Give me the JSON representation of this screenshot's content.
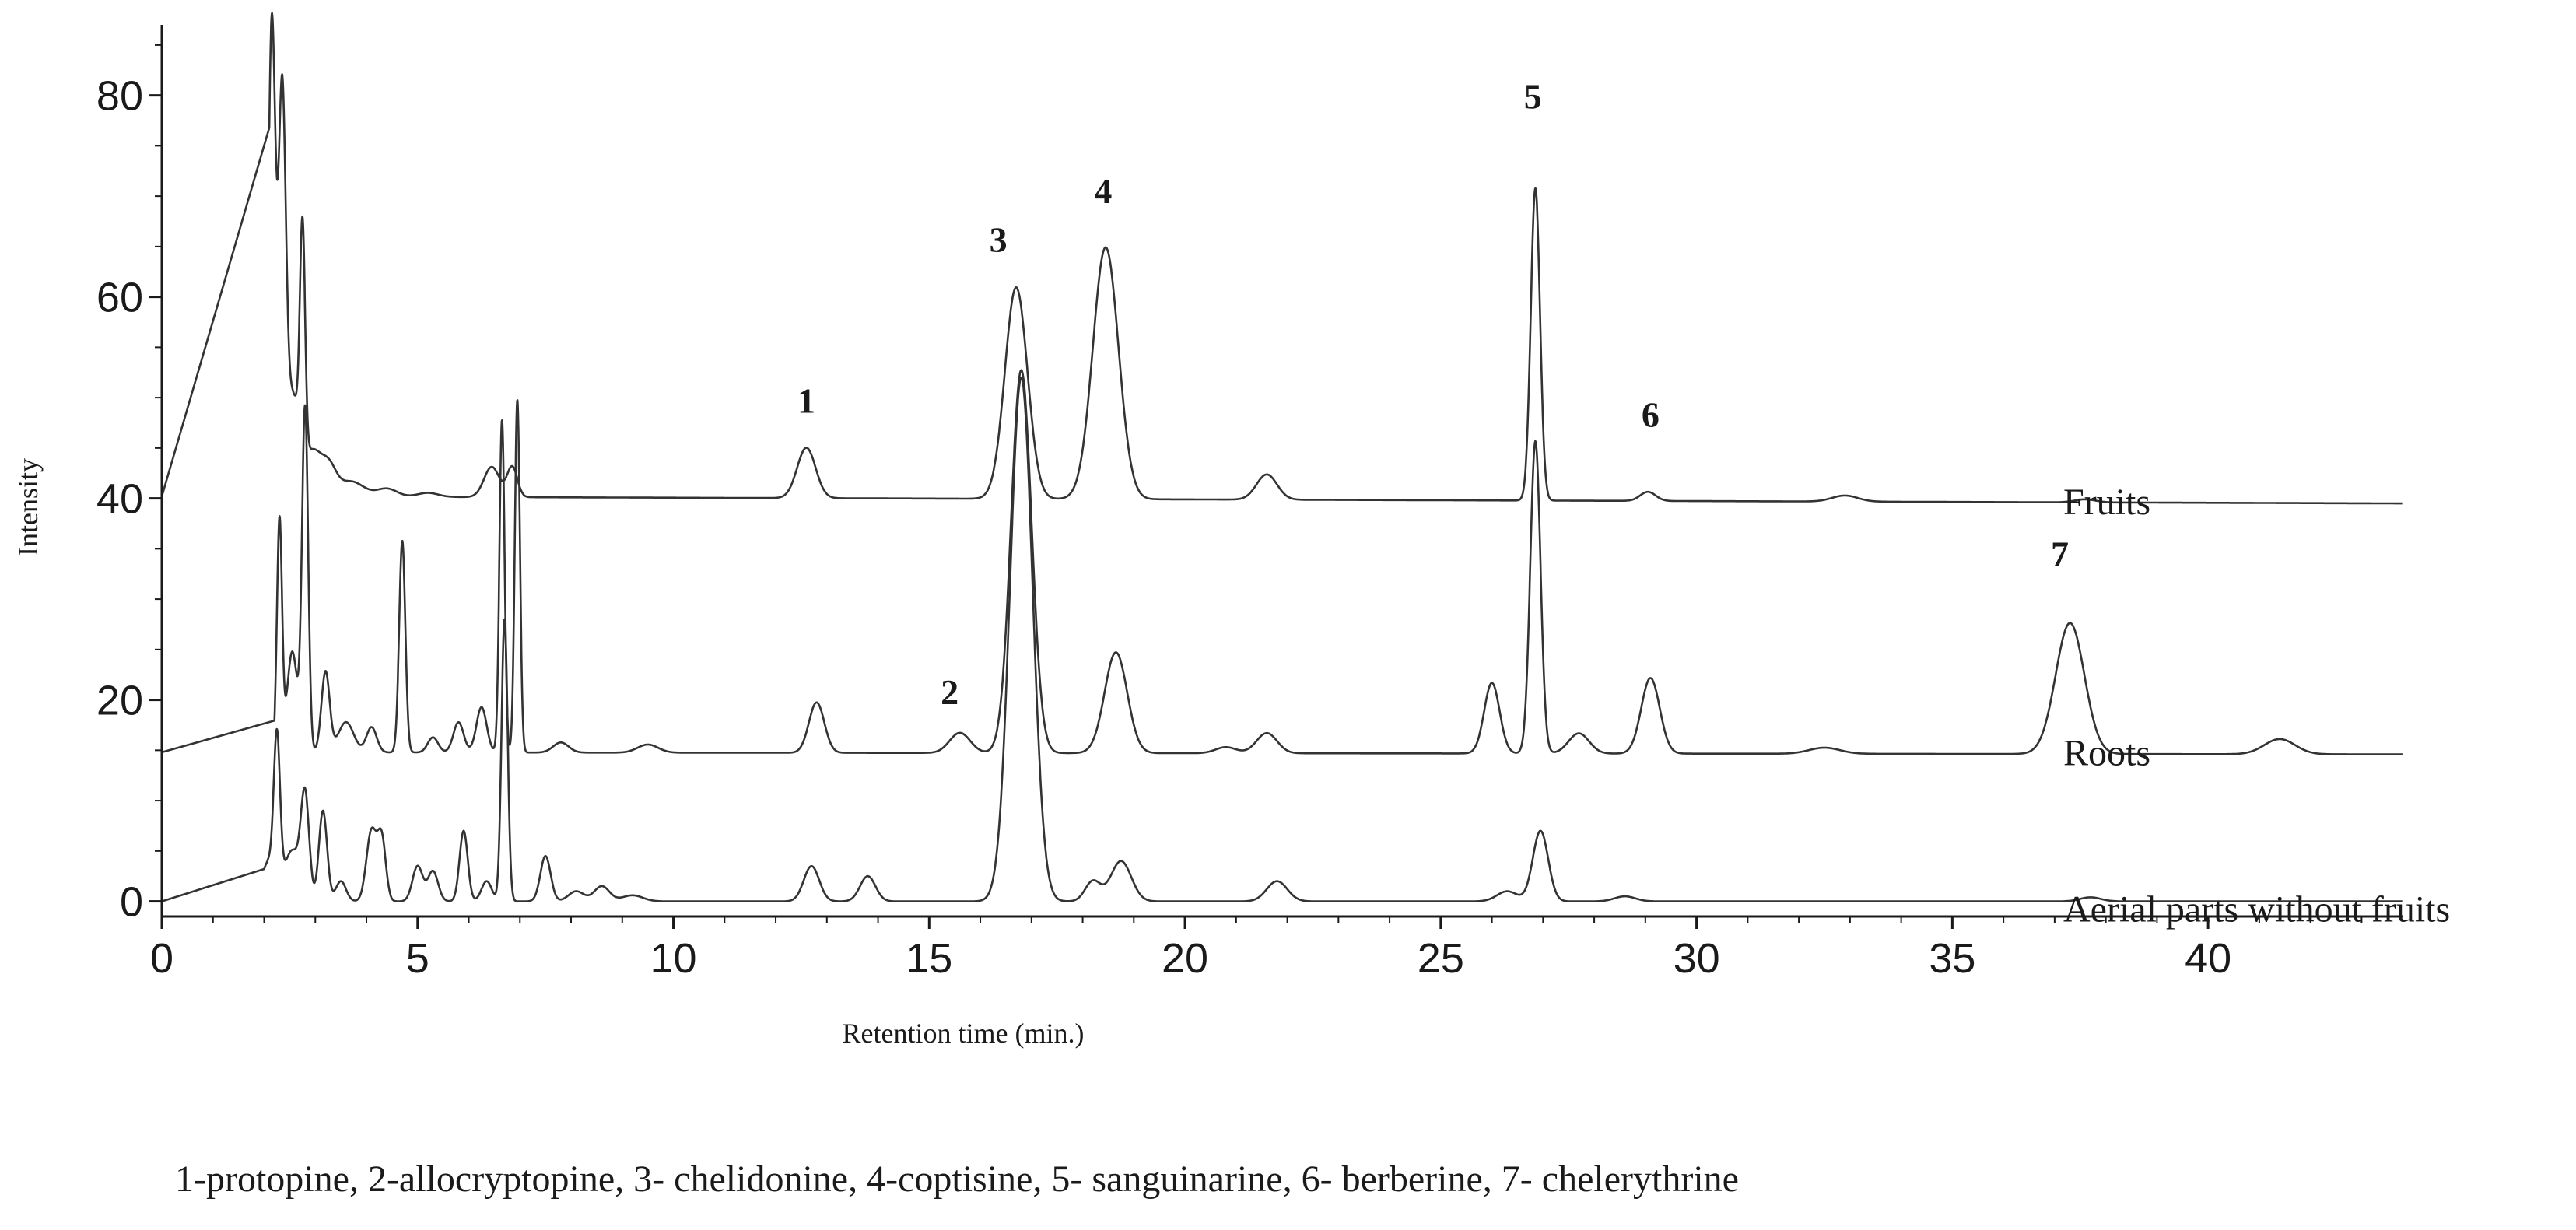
{
  "chart_data": {
    "type": "line",
    "xlabel": "Retention time (min.)",
    "ylabel": "Intensity",
    "xlim": [
      0,
      43.8
    ],
    "ylim": [
      -1.5,
      87
    ],
    "x_ticks": [
      0,
      5,
      10,
      15,
      20,
      25,
      30,
      35,
      40
    ],
    "y_ticks": [
      0,
      20,
      40,
      60,
      80
    ],
    "series": [
      {
        "name": "Fruits",
        "color": "#333333",
        "baseline": 40.2,
        "baseline_end": 39.5,
        "start_time": 2.1,
        "peaks": [
          [
            2.15,
            47,
            0.07
          ],
          [
            2.35,
            37,
            0.07
          ],
          [
            2.55,
            10,
            0.15
          ],
          [
            2.75,
            22,
            0.05
          ],
          [
            2.95,
            4,
            0.15
          ],
          [
            3.25,
            3,
            0.15
          ],
          [
            3.7,
            1.5,
            0.25
          ],
          [
            4.4,
            0.8,
            0.2
          ],
          [
            5.2,
            0.4,
            0.2
          ],
          [
            6.45,
            3,
            0.15
          ],
          [
            6.85,
            3,
            0.1
          ],
          [
            12.6,
            5,
            0.18
          ],
          [
            16.7,
            21,
            0.22
          ],
          [
            18.45,
            25,
            0.25
          ],
          [
            21.6,
            2.5,
            0.2
          ],
          [
            26.85,
            31,
            0.09
          ],
          [
            29.05,
            0.9,
            0.15
          ],
          [
            32.9,
            0.6,
            0.25
          ],
          [
            37.6,
            0.3,
            0.2
          ]
        ]
      },
      {
        "name": "Roots",
        "color": "#333333",
        "baseline": 14.8,
        "baseline_end": 14.6,
        "start_time": 2.2,
        "peaks": [
          [
            2.3,
            23,
            0.05
          ],
          [
            2.55,
            10,
            0.1
          ],
          [
            2.8,
            34,
            0.06
          ],
          [
            3.2,
            8,
            0.08
          ],
          [
            3.6,
            3,
            0.15
          ],
          [
            4.1,
            2.5,
            0.1
          ],
          [
            4.7,
            21,
            0.06
          ],
          [
            5.3,
            1.5,
            0.1
          ],
          [
            5.8,
            3,
            0.1
          ],
          [
            6.25,
            4.5,
            0.1
          ],
          [
            6.65,
            33,
            0.05
          ],
          [
            6.95,
            35,
            0.05
          ],
          [
            7.8,
            1,
            0.15
          ],
          [
            9.5,
            0.8,
            0.2
          ],
          [
            12.8,
            5,
            0.15
          ],
          [
            15.6,
            2,
            0.2
          ],
          [
            16.8,
            38,
            0.2
          ],
          [
            18.65,
            10,
            0.22
          ],
          [
            20.8,
            0.6,
            0.2
          ],
          [
            21.6,
            2,
            0.2
          ],
          [
            26.0,
            7,
            0.15
          ],
          [
            26.85,
            31,
            0.1
          ],
          [
            27.7,
            2,
            0.2
          ],
          [
            29.1,
            7.5,
            0.18
          ],
          [
            32.5,
            0.6,
            0.3
          ],
          [
            37.3,
            13,
            0.28
          ],
          [
            41.4,
            1.5,
            0.3
          ]
        ]
      },
      {
        "name": "Aerial parts without fruits",
        "color": "#333333",
        "baseline": 0,
        "baseline_end": 0,
        "start_time": 2.0,
        "peaks": [
          [
            2.1,
            4,
            0.15
          ],
          [
            2.25,
            14,
            0.06
          ],
          [
            2.55,
            5,
            0.15
          ],
          [
            2.8,
            10,
            0.08
          ],
          [
            3.15,
            9,
            0.08
          ],
          [
            3.5,
            2,
            0.1
          ],
          [
            4.1,
            7,
            0.1
          ],
          [
            4.3,
            6,
            0.08
          ],
          [
            5.0,
            3.5,
            0.1
          ],
          [
            5.3,
            3,
            0.1
          ],
          [
            5.9,
            7,
            0.08
          ],
          [
            6.35,
            2,
            0.1
          ],
          [
            6.7,
            28,
            0.06
          ],
          [
            7.5,
            4.5,
            0.1
          ],
          [
            8.1,
            1,
            0.15
          ],
          [
            8.6,
            1.5,
            0.15
          ],
          [
            9.2,
            0.6,
            0.2
          ],
          [
            12.7,
            3.5,
            0.15
          ],
          [
            13.8,
            2.5,
            0.15
          ],
          [
            16.8,
            52,
            0.22
          ],
          [
            18.2,
            2,
            0.15
          ],
          [
            18.75,
            4,
            0.2
          ],
          [
            21.8,
            2,
            0.2
          ],
          [
            26.3,
            1,
            0.2
          ],
          [
            26.95,
            7,
            0.15
          ],
          [
            28.6,
            0.5,
            0.2
          ],
          [
            37.7,
            0.4,
            0.2
          ]
        ]
      }
    ],
    "annotations": [
      {
        "text": "1",
        "x": 12.6,
        "y": 48.5
      },
      {
        "text": "2",
        "x": 15.4,
        "y": 19.6
      },
      {
        "text": "3",
        "x": 16.35,
        "y": 64.5
      },
      {
        "text": "4",
        "x": 18.4,
        "y": 69.3
      },
      {
        "text": "5",
        "x": 26.8,
        "y": 78.7
      },
      {
        "text": "6",
        "x": 29.1,
        "y": 47.1
      },
      {
        "text": "7",
        "x": 37.1,
        "y": 33.3
      }
    ],
    "footnote": "1-protopine, 2-allocryptopine, 3- chelidonine, 4-coptisine, 5- sanguinarine, 6- berberine, 7- chelerythrine"
  }
}
